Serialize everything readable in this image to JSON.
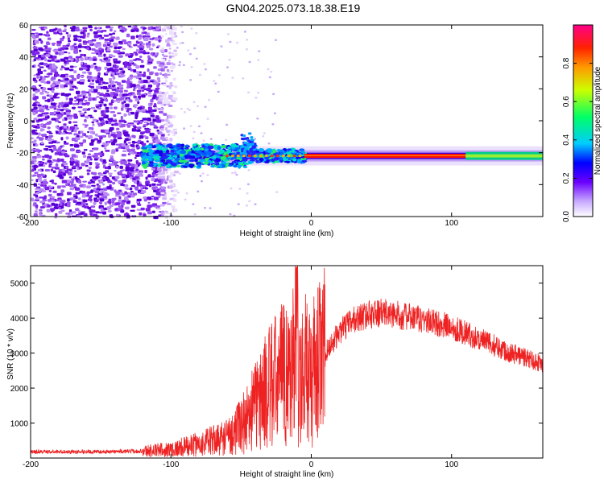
{
  "figure_title": "GN04.2025.073.18.38.E19",
  "colors": {
    "signal": "#ff0000",
    "snr_line": "#ee2222",
    "noise_purple": "#7a20e8"
  },
  "chart_data": [
    {
      "type": "heatmap",
      "xlabel": "Height of straight line (km)",
      "ylabel": "Frequency (Hz)",
      "xlim": [
        -200,
        165
      ],
      "ylim": [
        -60,
        60
      ],
      "x_ticks": [
        -200,
        -100,
        0,
        100
      ],
      "y_ticks": [
        -60,
        -40,
        -20,
        0,
        20,
        40,
        60
      ],
      "x_tick_labels": [
        "-200",
        "-100",
        "0",
        "100"
      ],
      "y_tick_labels": [
        "-60",
        "-40",
        "-20",
        "0",
        "20",
        "40",
        "60"
      ],
      "colorbar": {
        "label": "Normalized spectral amplitude",
        "range": [
          0,
          1
        ],
        "ticks": [
          0.0,
          0.2,
          0.4,
          0.6,
          0.8
        ],
        "tick_labels": [
          "0.0",
          "0.2",
          "0.4",
          "0.6",
          "0.8"
        ]
      },
      "features": {
        "noise_region_x": [
          -200,
          -105
        ],
        "signal_line_frequency_hz": -22,
        "signal_line_x": [
          -120,
          165
        ],
        "strong_line_x": [
          -5,
          110
        ]
      }
    },
    {
      "type": "line",
      "xlabel": "Height of straight line (km)",
      "ylabel": "SNR (10 * v/v)",
      "xlim": [
        -200,
        165
      ],
      "ylim": [
        0,
        5500
      ],
      "x_ticks": [
        -200,
        -100,
        0,
        100
      ],
      "y_ticks": [
        1000,
        2000,
        3000,
        4000,
        5000
      ],
      "x_tick_labels": [
        "-200",
        "-100",
        "0",
        "100"
      ],
      "y_tick_labels": [
        "1000",
        "2000",
        "3000",
        "4000",
        "5000"
      ],
      "envelope": {
        "x": [
          -200,
          -150,
          -120,
          -100,
          -80,
          -60,
          -50,
          -40,
          -30,
          -20,
          -10,
          0,
          10,
          20,
          30,
          40,
          50,
          60,
          80,
          100,
          120,
          140,
          165
        ],
        "y": [
          180,
          180,
          200,
          250,
          400,
          600,
          900,
          1500,
          2000,
          2400,
          2500,
          2300,
          3000,
          3600,
          3950,
          4100,
          4150,
          4100,
          3950,
          3750,
          3400,
          3050,
          2700
        ]
      }
    }
  ]
}
